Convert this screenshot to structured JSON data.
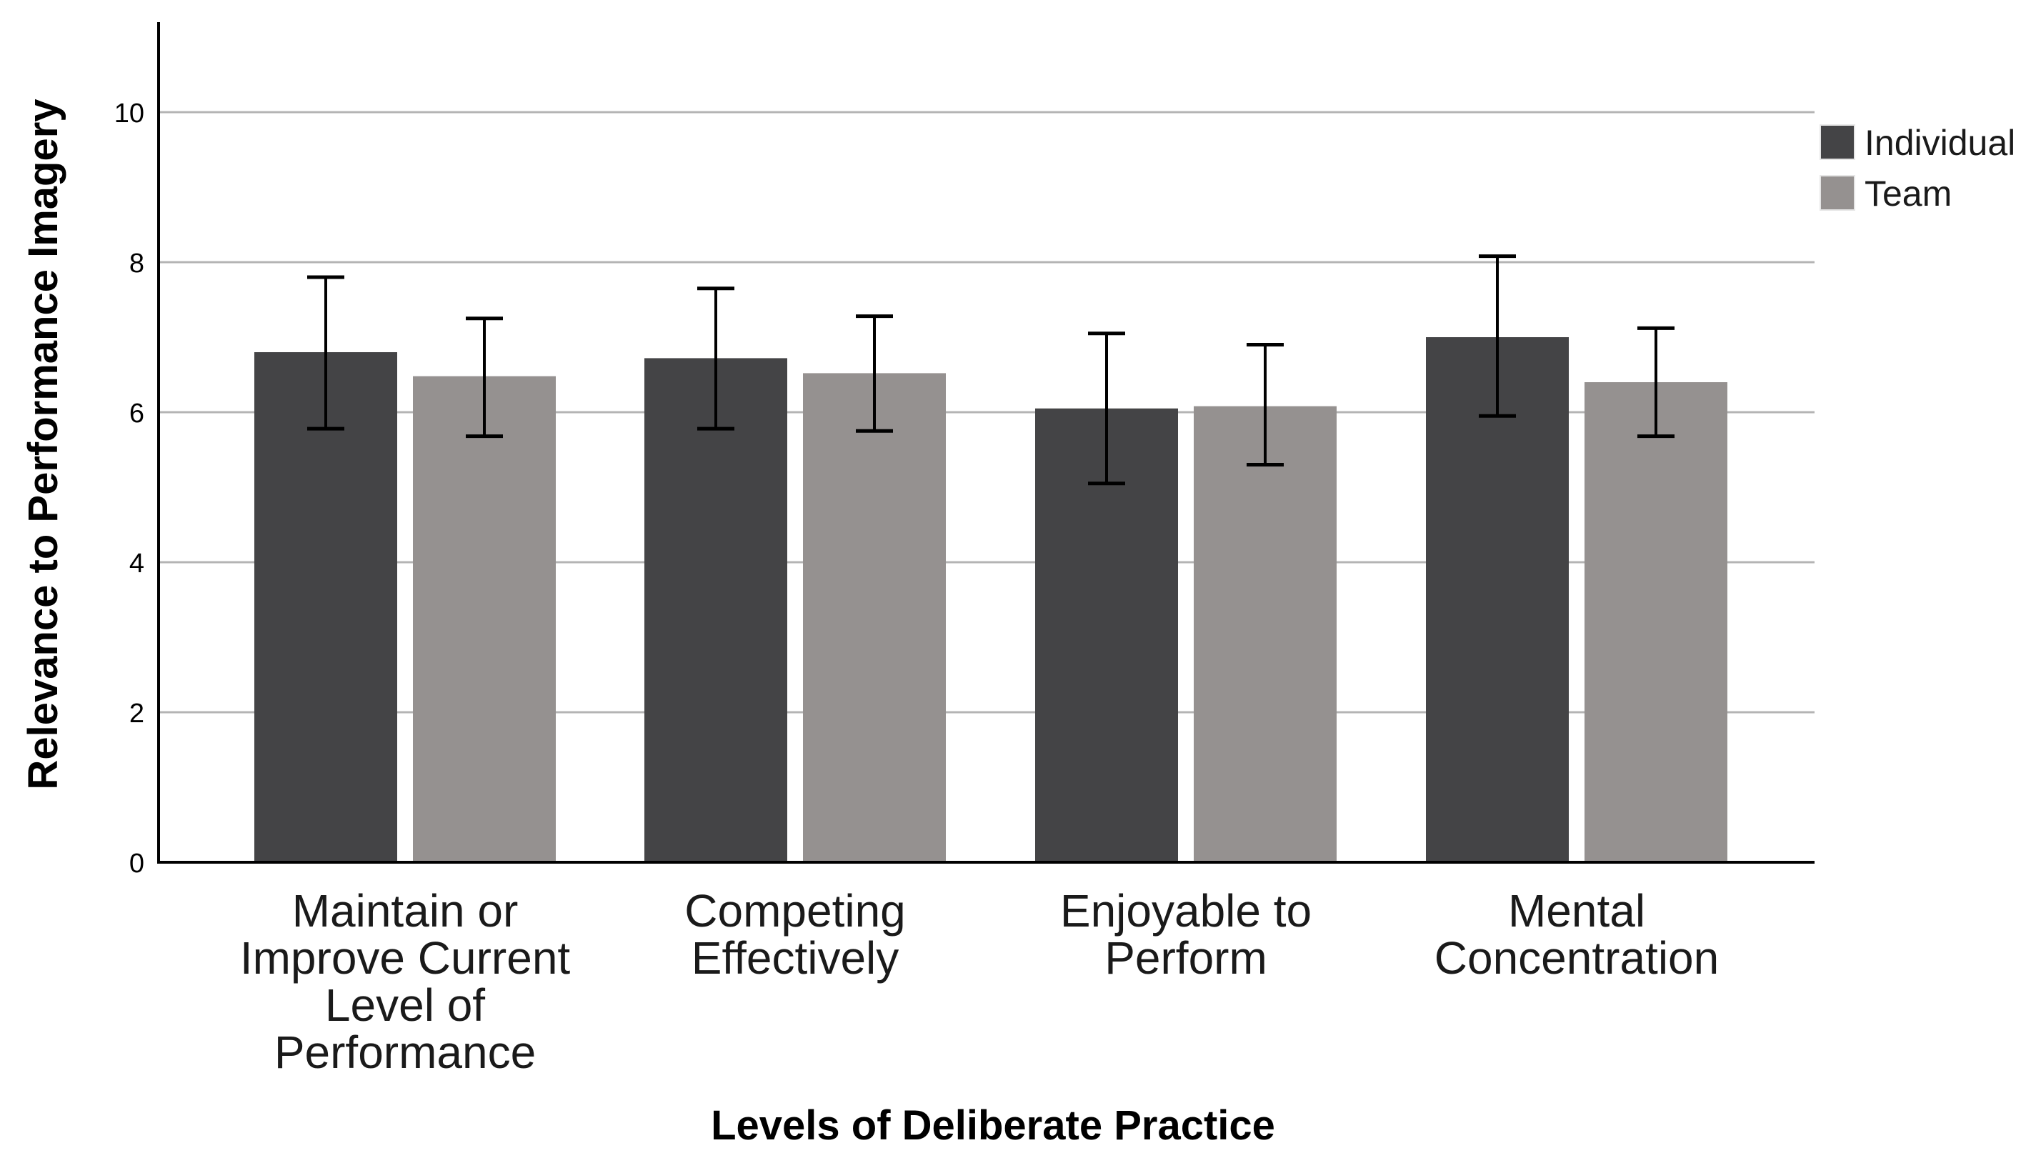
{
  "chart_data": {
    "type": "bar",
    "title": "",
    "xlabel": "Levels of Deliberate Practice",
    "ylabel": "Relevance to Performance Imagery",
    "ylim": [
      0,
      11.2
    ],
    "yticks": [
      0,
      2,
      4,
      6,
      8,
      10
    ],
    "ytick_labels": [
      "0",
      "2",
      "4",
      "6",
      "8",
      "10"
    ],
    "grid": true,
    "legend_position": "top-right",
    "categories": [
      [
        "Maintain or",
        "Improve Current",
        "Level of",
        "Performance"
      ],
      [
        "Competing",
        "Effectively"
      ],
      [
        "Enjoyable to",
        "Perform"
      ],
      [
        "Mental",
        "Concentration"
      ]
    ],
    "series": [
      {
        "name": "Individual",
        "color": "#444446",
        "values": [
          6.8,
          6.72,
          6.05,
          7.0
        ],
        "error_low": [
          5.78,
          5.78,
          5.05,
          5.95
        ],
        "error_high": [
          7.8,
          7.65,
          7.05,
          8.08
        ]
      },
      {
        "name": "Team",
        "color": "#959190",
        "values": [
          6.48,
          6.52,
          6.08,
          6.4
        ],
        "error_low": [
          5.68,
          5.75,
          5.3,
          5.68
        ],
        "error_high": [
          7.25,
          7.28,
          6.9,
          7.12
        ]
      }
    ]
  }
}
